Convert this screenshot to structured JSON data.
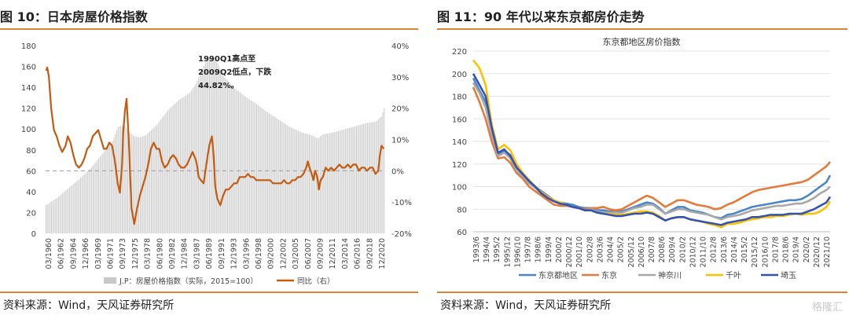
{
  "left": {
    "title": "图 10：日本房屋价格指数",
    "source": "资料来源：Wind，天风证券研究所"
  },
  "right": {
    "title": "图 11：90 年代以来东京都房价走势",
    "source": "资料来源：Wind，天风证券研究所"
  },
  "watermark": "格隆汇",
  "chart_data": [
    {
      "type": "bar",
      "title": "",
      "y_left": {
        "ticks": [
          0,
          20,
          40,
          60,
          80,
          100,
          120,
          140,
          160,
          180
        ],
        "ylim": [
          0,
          180
        ]
      },
      "y_right": {
        "ticks": [
          "-20%",
          "-10%",
          "0%",
          "10%",
          "20%",
          "30%",
          "40%"
        ],
        "ylim": [
          -20,
          40
        ]
      },
      "x_tick_labels": [
        "03/1960",
        "06/1962",
        "09/1964",
        "12/1966",
        "03/1969",
        "06/1971",
        "09/1973",
        "12/1975",
        "03/1978",
        "06/1980",
        "09/1982",
        "12/1984",
        "03/1987",
        "06/1989",
        "09/1991",
        "12/1993",
        "03/1996",
        "06/1998",
        "09/2000",
        "12/2002",
        "03/2005",
        "06/2007",
        "09/2009",
        "12/2011",
        "03/2014",
        "06/2016",
        "09/2018",
        "12/2020"
      ],
      "annotation": "1990Q1高点至2009Q2低点，下跌44.82%。",
      "annotation_lines": [
        "1990Q1高点至",
        "2009Q2低点，下跌",
        "44.82%。"
      ],
      "series": [
        {
          "name": "J.P：房屋价格指数（实际，2015=100）",
          "axis": "left",
          "color": "#c8c8c8",
          "x": [
            1960,
            1962,
            1964,
            1966,
            1968,
            1970,
            1972,
            1973,
            1974,
            1975,
            1976,
            1977,
            1978,
            1980,
            1982,
            1984,
            1986,
            1987,
            1988,
            1989,
            1990,
            1991,
            1992,
            1994,
            1996,
            1998,
            2000,
            2002,
            2004,
            2006,
            2008,
            2009,
            2010,
            2012,
            2014,
            2016,
            2018,
            2019.5,
            2020.5,
            2021
          ],
          "values": [
            27,
            34,
            43,
            52,
            62,
            75,
            88,
            102,
            104,
            97,
            93,
            92,
            94,
            104,
            118,
            128,
            135,
            143,
            155,
            166,
            169,
            163,
            151,
            139,
            131,
            124,
            116,
            109,
            102,
            97,
            94,
            91,
            95,
            97,
            100,
            103,
            106,
            107,
            112,
            120
          ]
        },
        {
          "name": "同比（右）",
          "axis": "right",
          "color": "#c55a11",
          "x": [
            1960.1,
            1960.3,
            1960.6,
            1961,
            1961.5,
            1962,
            1962.5,
            1963,
            1963.6,
            1964,
            1964.5,
            1965,
            1965.5,
            1966,
            1966.5,
            1967,
            1967.5,
            1968,
            1968.5,
            1969,
            1969.5,
            1970,
            1970.5,
            1971,
            1971.5,
            1972,
            1972.5,
            1973,
            1973.4,
            1973.8,
            1974,
            1974.3,
            1974.6,
            1975,
            1975.5,
            1976,
            1976.5,
            1977,
            1977.5,
            1978,
            1978.5,
            1979,
            1979.5,
            1980,
            1980.5,
            1981,
            1981.5,
            1982,
            1982.5,
            1983,
            1983.5,
            1984,
            1984.5,
            1985,
            1985.5,
            1986,
            1986.5,
            1987,
            1987.3,
            1987.6,
            1988,
            1988.5,
            1989,
            1989.5,
            1990,
            1990.3,
            1990.6,
            1991,
            1991.5,
            1992,
            1992.5,
            1993,
            1993.5,
            1994,
            1994.5,
            1995,
            1995.5,
            1996,
            1996.5,
            1997,
            1997.5,
            1998,
            1998.5,
            1999,
            1999.5,
            2000,
            2000.5,
            2001,
            2001.5,
            2002,
            2002.5,
            2003,
            2003.5,
            2004,
            2004.5,
            2005,
            2005.5,
            2006,
            2006.5,
            2007,
            2007.3,
            2007.6,
            2008,
            2008.3,
            2008.6,
            2009,
            2009.3,
            2009.6,
            2010,
            2010.5,
            2011,
            2011.5,
            2012,
            2012.5,
            2013,
            2013.5,
            2014,
            2014.5,
            2015,
            2015.5,
            2016,
            2016.5,
            2017,
            2017.5,
            2018,
            2018.5,
            2019,
            2019.5,
            2020,
            2020.3,
            2020.6,
            2021
          ],
          "values": [
            32,
            33,
            30,
            20,
            13,
            11,
            8,
            6,
            8,
            11,
            9,
            5,
            2,
            1,
            2,
            4,
            7,
            8,
            11,
            12,
            13,
            10,
            7,
            7,
            9,
            8,
            3,
            -4,
            -7,
            2,
            12,
            19,
            23,
            10,
            -12,
            -17,
            -12,
            -8,
            -5,
            -2,
            2,
            7,
            9,
            7,
            7,
            3,
            1,
            2,
            4,
            5,
            4,
            2,
            1,
            1,
            2,
            4,
            6,
            4,
            2,
            -2,
            -3,
            -4,
            2,
            8,
            11,
            5,
            -5,
            -9,
            -11,
            -8,
            -6,
            -6,
            -5,
            -4,
            -4,
            -2,
            -2,
            -2,
            -1,
            -2,
            -2,
            -3,
            -3,
            -3,
            -3,
            -3,
            -3,
            -4,
            -4,
            -4,
            -4,
            -3,
            -4,
            -4,
            -3,
            -3,
            -2,
            -2,
            -1,
            1,
            3,
            1,
            -1,
            -3,
            0,
            -2,
            -6,
            -3,
            -2,
            1,
            0,
            1,
            0,
            1,
            2,
            1,
            1,
            2,
            1,
            2,
            2,
            0,
            1,
            1,
            0,
            1,
            1,
            -1,
            0,
            5,
            8,
            7
          ]
        }
      ]
    },
    {
      "type": "line",
      "title": "东京都地区房价指数",
      "ylim": [
        60,
        220
      ],
      "y_ticks": [
        60,
        80,
        100,
        120,
        140,
        160,
        180,
        200,
        220
      ],
      "x_tick_labels": [
        "1993/6",
        "1994/4",
        "1995/2",
        "1995/12",
        "1996/10",
        "1997/8",
        "1998/6",
        "1999/4",
        "2000/2",
        "2000/12",
        "2001/10",
        "2002/8",
        "2003/6",
        "2004/4",
        "2005/2",
        "2005/12",
        "2006/10",
        "2007/8",
        "2008/6",
        "2009/4",
        "2010/2",
        "2010/12",
        "2011/10",
        "2012/8",
        "2013/6",
        "2014/4",
        "2015/2",
        "2015/12",
        "2016/10",
        "2017/8",
        "2018/6",
        "2019/4",
        "2020/2",
        "2020/12",
        "2021/10"
      ],
      "x": [
        1993.5,
        1994,
        1994.5,
        1995,
        1995.5,
        1996,
        1996.5,
        1997,
        1997.5,
        1998,
        1998.5,
        1999,
        1999.5,
        2000,
        2000.5,
        2001,
        2001.5,
        2002,
        2002.5,
        2003,
        2003.5,
        2004,
        2004.5,
        2005,
        2005.5,
        2006,
        2006.5,
        2007,
        2007.5,
        2008,
        2008.5,
        2009,
        2009.5,
        2010,
        2010.5,
        2011,
        2011.5,
        2012,
        2012.5,
        2013,
        2013.5,
        2014,
        2014.5,
        2015,
        2015.5,
        2016,
        2016.5,
        2017,
        2017.5,
        2018,
        2018.5,
        2019,
        2019.5,
        2020,
        2020.5,
        2021,
        2021.5,
        2022,
        2022.3
      ],
      "series": [
        {
          "name": "东京都地区",
          "color": "#4a86c8",
          "values": [
            196,
            185,
            175,
            150,
            128,
            132,
            128,
            118,
            112,
            105,
            100,
            96,
            92,
            88,
            86,
            85,
            84,
            82,
            81,
            81,
            79,
            79,
            78,
            78,
            78,
            80,
            82,
            84,
            86,
            85,
            81,
            76,
            79,
            82,
            82,
            79,
            78,
            77,
            75,
            73,
            72,
            75,
            76,
            78,
            80,
            82,
            83,
            84,
            85,
            86,
            87,
            88,
            88,
            89,
            92,
            96,
            100,
            104,
            110
          ]
        },
        {
          "name": "东京",
          "color": "#e37b3a",
          "values": [
            188,
            175,
            160,
            140,
            125,
            126,
            121,
            112,
            107,
            100,
            96,
            92,
            88,
            84,
            83,
            83,
            82,
            81,
            80,
            81,
            81,
            82,
            80,
            79,
            80,
            83,
            86,
            89,
            92,
            90,
            86,
            82,
            85,
            88,
            88,
            86,
            84,
            83,
            82,
            80,
            81,
            84,
            86,
            89,
            92,
            95,
            97,
            98,
            99,
            100,
            101,
            102,
            103,
            104,
            106,
            110,
            114,
            118,
            122
          ]
        },
        {
          "name": "神奈川",
          "color": "#a8a8a8",
          "values": [
            192,
            183,
            170,
            147,
            127,
            130,
            125,
            114,
            109,
            103,
            99,
            94,
            90,
            87,
            85,
            84,
            82,
            81,
            79,
            80,
            78,
            77,
            77,
            77,
            77,
            79,
            81,
            82,
            84,
            84,
            80,
            76,
            78,
            80,
            80,
            78,
            77,
            76,
            75,
            73,
            71,
            73,
            74,
            75,
            77,
            79,
            80,
            81,
            82,
            83,
            83,
            84,
            85,
            85,
            87,
            90,
            94,
            97,
            100
          ]
        },
        {
          "name": "千叶",
          "color": "#ffc000",
          "values": [
            212,
            205,
            190,
            155,
            133,
            137,
            132,
            120,
            112,
            106,
            100,
            95,
            91,
            88,
            86,
            84,
            82,
            81,
            79,
            79,
            77,
            76,
            76,
            75,
            75,
            76,
            77,
            78,
            78,
            77,
            74,
            70,
            72,
            73,
            73,
            71,
            70,
            69,
            67,
            66,
            64,
            67,
            67,
            68,
            70,
            71,
            72,
            73,
            73,
            74,
            74,
            75,
            76,
            75,
            76,
            76,
            78,
            82,
            87
          ]
        },
        {
          "name": "埼玉",
          "color": "#3353b3",
          "values": [
            200,
            190,
            180,
            152,
            130,
            133,
            127,
            117,
            111,
            105,
            100,
            94,
            90,
            87,
            85,
            84,
            82,
            81,
            79,
            79,
            77,
            76,
            75,
            74,
            74,
            75,
            76,
            76,
            77,
            76,
            73,
            70,
            72,
            73,
            73,
            71,
            70,
            69,
            68,
            67,
            66,
            68,
            69,
            70,
            71,
            73,
            73,
            74,
            75,
            75,
            75,
            76,
            76,
            76,
            78,
            80,
            83,
            86,
            91
          ]
        }
      ]
    }
  ]
}
